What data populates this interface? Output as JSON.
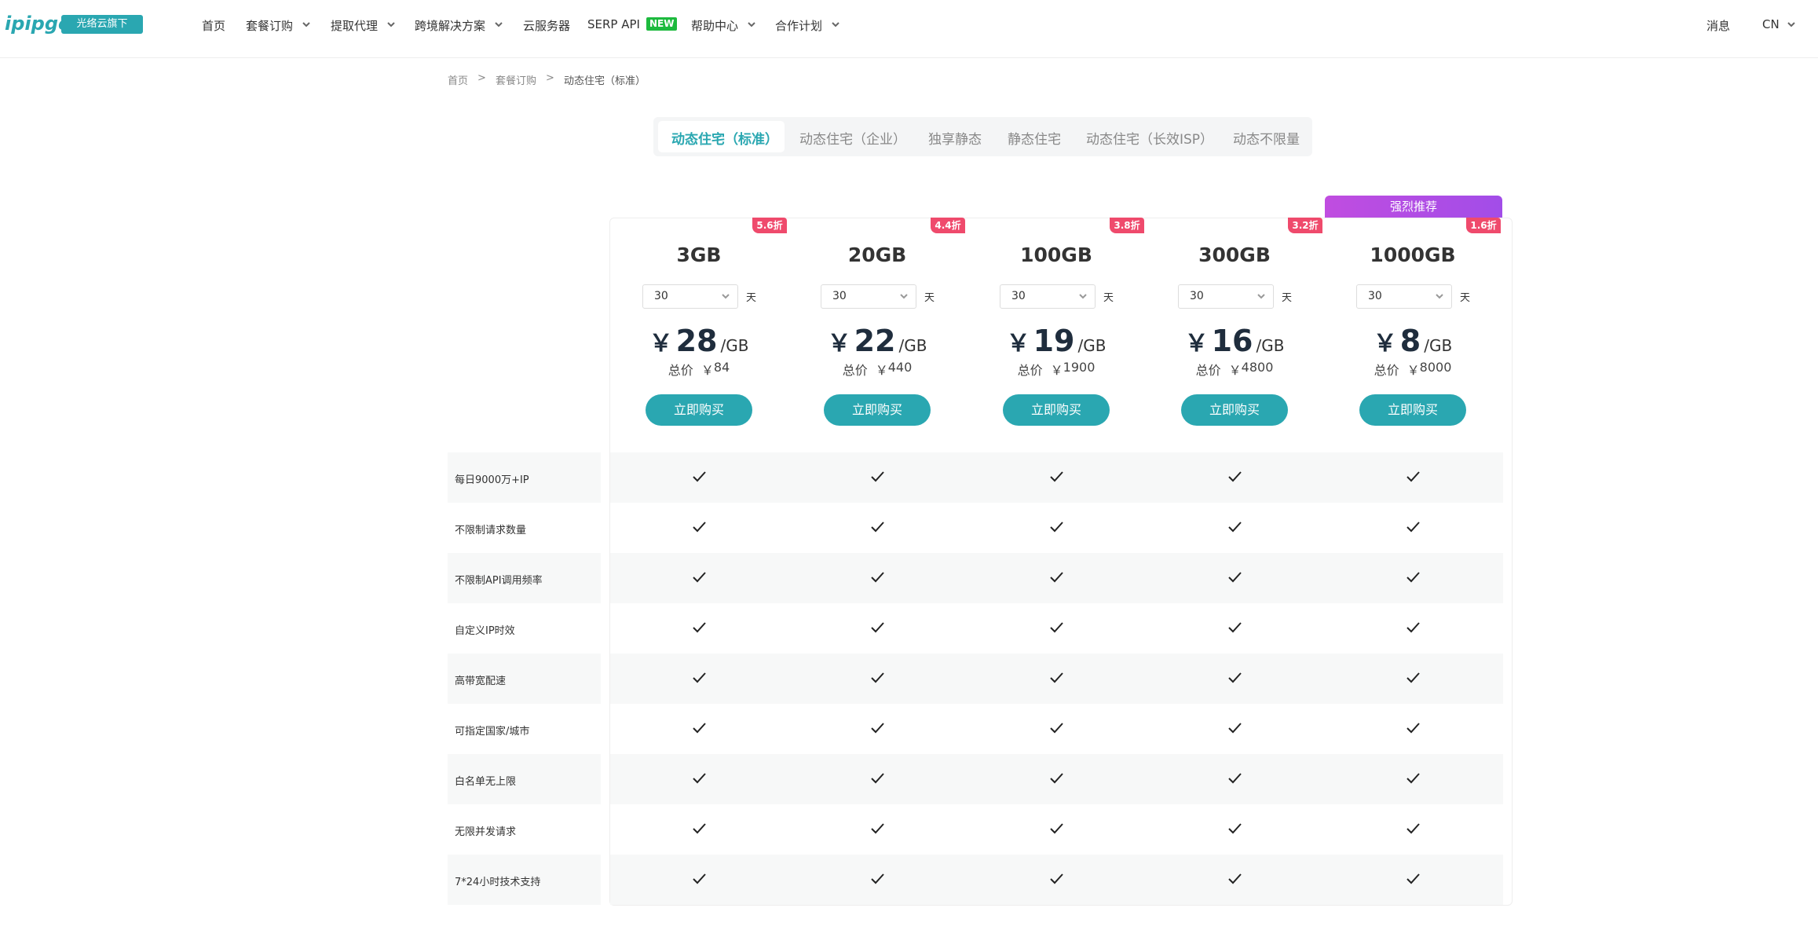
{
  "header": {
    "logo": "ipipgo",
    "badge": "光络云旗下",
    "nav": [
      "首页",
      "套餐订购",
      "提取代理",
      "跨境解决方案",
      "云服务器",
      "SERP API",
      "帮助中心",
      "合作计划"
    ],
    "new_tag": "NEW",
    "right": [
      "消息",
      "CN"
    ]
  },
  "breadcrumb": {
    "items": [
      "首页",
      "套餐订购",
      "动态住宅（标准）"
    ],
    "separator": ">"
  },
  "tabs": [
    "动态住宅（标准）",
    "动态住宅（企业）",
    "独享静态",
    "静态住宅",
    "动态住宅（长效ISP）",
    "动态不限量"
  ],
  "recommend": "强烈推荐",
  "plan_labels": {
    "days": "30",
    "day_unit": "天",
    "currency": "￥",
    "per": "/GB",
    "total": "总价",
    "buy": "立即购买"
  },
  "plans": [
    {
      "name": "3GB",
      "discount": "5.6折",
      "price": 28,
      "total": 84
    },
    {
      "name": "20GB",
      "discount": "4.4折",
      "price": 22,
      "total": 440
    },
    {
      "name": "100GB",
      "discount": "3.8折",
      "price": 19,
      "total": 1900
    },
    {
      "name": "300GB",
      "discount": "3.2折",
      "price": 16,
      "total": 4800
    },
    {
      "name": "1000GB",
      "discount": "1.6折",
      "price": 8,
      "total": 8000
    }
  ],
  "features": [
    "每日9000万+IP",
    "不限制请求数量",
    "不限制API调用频率",
    "自定义IP时效",
    "高带宽配速",
    "可指定国家/城市",
    "白名单无上限",
    "无限并发请求",
    "7*24小时技术支持"
  ]
}
